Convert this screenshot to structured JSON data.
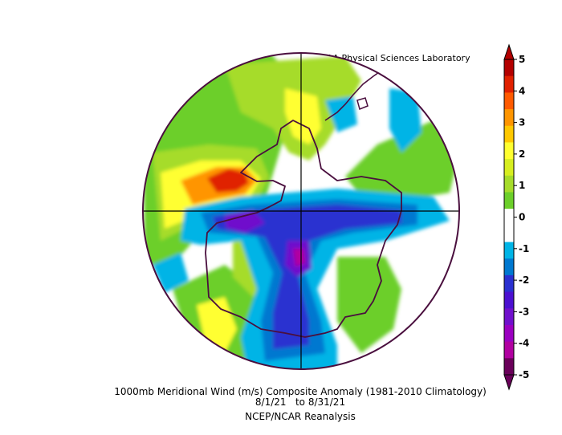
{
  "header": {
    "credit": "NOAA Physical Sciences Laboratory"
  },
  "caption": {
    "line1": "1000mb Meridional Wind (m/s) Composite Anomaly (1981-2010 Climatology)",
    "line2": "8/1/21   to 8/31/21",
    "line3": "NCEP/NCAR Reanalysis"
  },
  "colorbar": {
    "ticks": [
      "5",
      "4",
      "3",
      "2",
      "1",
      "0",
      "-1",
      "-2",
      "-3",
      "-4",
      "-5"
    ],
    "colors": [
      "#b30000",
      "#e02000",
      "#ff5a00",
      "#ff9500",
      "#ffc800",
      "#ffff30",
      "#d7ee20",
      "#a6dc2a",
      "#6ccf2a",
      "#ffffff",
      "#ffffff",
      "#00b4e6",
      "#0078d0",
      "#2a30d0",
      "#4b10d0",
      "#7010cc",
      "#9a00c0",
      "#b000a0",
      "#6a005a"
    ],
    "min": -5,
    "max": 5
  },
  "map": {
    "projection": "south-polar-stereographic",
    "variable": "meridional-wind-anomaly"
  }
}
